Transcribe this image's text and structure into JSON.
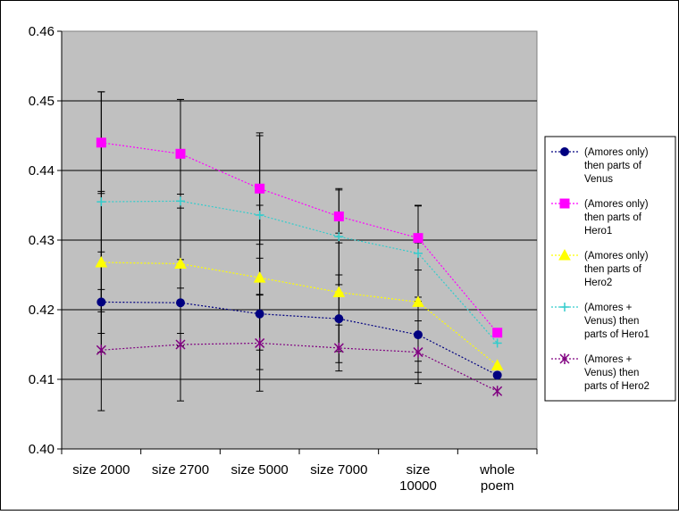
{
  "chart_data": {
    "type": "line",
    "title": "",
    "xlabel": "",
    "ylabel": "",
    "categories": [
      [
        "size 2000"
      ],
      [
        "size 2700"
      ],
      [
        "size 5000"
      ],
      [
        "size 7000"
      ],
      [
        "size",
        "10000"
      ],
      [
        "whole",
        "poem"
      ]
    ],
    "ylim": [
      0.4,
      0.46
    ],
    "yticks": [
      "0.40",
      "0.41",
      "0.42",
      "0.43",
      "0.44",
      "0.45",
      "0.46"
    ],
    "grid": "horizontal",
    "plot_background": "#c0c0c0",
    "legend_position": "right",
    "series": [
      {
        "name": [
          "(Amores only)",
          "then parts of",
          "Venus"
        ],
        "color": "#000080",
        "marker": "circle",
        "values": [
          0.4211,
          0.421,
          0.4194,
          0.4187,
          0.4164,
          0.4106
        ],
        "error": [
          0.0072,
          0.0062,
          0.008,
          0.0063,
          0.0054,
          0
        ]
      },
      {
        "name": [
          "(Amores only)",
          "then parts of",
          "Hero1"
        ],
        "color": "#ff00ff",
        "marker": "square",
        "values": [
          0.444,
          0.4424,
          0.4374,
          0.4334,
          0.4303,
          0.4167
        ],
        "error": [
          0.0073,
          0.0078,
          0.008,
          0.0038,
          0.0046,
          0
        ]
      },
      {
        "name": [
          "(Amores only)",
          "then parts of",
          "Hero2"
        ],
        "color": "#ffff00",
        "marker": "triangle",
        "values": [
          0.4268,
          0.4266,
          0.4246,
          0.4225,
          0.4211,
          0.412
        ],
        "error": [
          0.0102,
          0.01,
          0.0104,
          0.0085,
          0.0085,
          0
        ]
      },
      {
        "name": [
          "(Amores +",
          "Venus) then",
          "parts of Hero1"
        ],
        "color": "#33cccc",
        "marker": "plus",
        "values": [
          0.4355,
          0.4356,
          0.4336,
          0.4305,
          0.4281,
          0.4152
        ],
        "error": [
          0.0158,
          0.0146,
          0.0114,
          0.0069,
          0.0069,
          0
        ]
      },
      {
        "name": [
          "(Amores +",
          "Venus) then",
          "parts of Hero2"
        ],
        "color": "#800080",
        "marker": "star",
        "values": [
          0.4142,
          0.415,
          0.4152,
          0.4145,
          0.4139,
          0.4083
        ],
        "error": [
          0.0087,
          0.0081,
          0.0069,
          0.0033,
          0.0045,
          0
        ]
      }
    ]
  }
}
